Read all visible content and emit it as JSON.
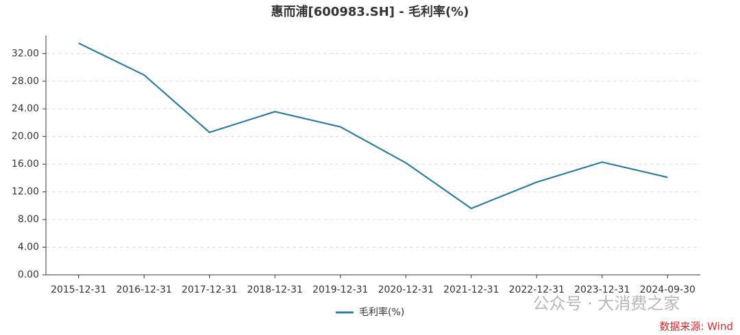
{
  "chart_data": {
    "type": "line",
    "title": "惠而浦[600983.SH] - 毛利率(%)",
    "categories": [
      "2015-12-31",
      "2016-12-31",
      "2017-12-31",
      "2018-12-31",
      "2019-12-31",
      "2020-12-31",
      "2021-12-31",
      "2022-12-31",
      "2023-12-31",
      "2024-09-30"
    ],
    "series": [
      {
        "name": "毛利率(%)",
        "color": "#2e7ca0",
        "values": [
          33.5,
          28.9,
          20.6,
          23.6,
          21.4,
          16.2,
          9.6,
          13.4,
          16.3,
          14.1
        ]
      }
    ],
    "ylim": [
      0,
      34.6
    ],
    "yticks": [
      {
        "value": 0,
        "label": "0.00"
      },
      {
        "value": 4,
        "label": "4.00"
      },
      {
        "value": 8,
        "label": "8.00"
      },
      {
        "value": 12,
        "label": "12.00"
      },
      {
        "value": 16,
        "label": "16.00"
      },
      {
        "value": 20,
        "label": "20.00"
      },
      {
        "value": 24,
        "label": "24.00"
      },
      {
        "value": 28,
        "label": "28.00"
      },
      {
        "value": 32,
        "label": "32.00"
      }
    ],
    "grid": true,
    "legend": "bottom",
    "watermark": "公众号 · 大消费之家",
    "source": "数据来源: Wind"
  }
}
